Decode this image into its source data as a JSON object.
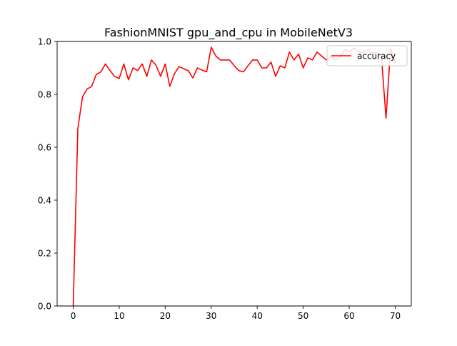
{
  "chart_data": {
    "type": "line",
    "title": "FashionMNIST gpu_and_cpu in MobileNetV3",
    "xlabel": "",
    "ylabel": "",
    "xlim": [
      -3.5,
      73.5
    ],
    "ylim": [
      0,
      1.0
    ],
    "x_ticks": [
      0,
      10,
      20,
      30,
      40,
      50,
      60,
      70
    ],
    "y_ticks": [
      0.0,
      0.2,
      0.4,
      0.6,
      0.8,
      1.0
    ],
    "x_tick_labels": [
      "0",
      "10",
      "20",
      "30",
      "40",
      "50",
      "60",
      "70"
    ],
    "y_tick_labels": [
      "0.0",
      "0.2",
      "0.4",
      "0.6",
      "0.8",
      "1.0"
    ],
    "grid": false,
    "legend_position": "top-right",
    "series": [
      {
        "name": "accuracy",
        "color": "#ff0000",
        "x": [
          0,
          1,
          2,
          3,
          4,
          5,
          6,
          7,
          8,
          9,
          10,
          11,
          12,
          13,
          14,
          15,
          16,
          17,
          18,
          19,
          20,
          21,
          22,
          23,
          24,
          25,
          26,
          27,
          28,
          29,
          30,
          31,
          32,
          33,
          34,
          35,
          36,
          37,
          38,
          39,
          40,
          41,
          42,
          43,
          44,
          45,
          46,
          47,
          48,
          49,
          50,
          51,
          52,
          53,
          54,
          55,
          56,
          57,
          58,
          59,
          60,
          61,
          62,
          63,
          64,
          65,
          66,
          67,
          68,
          69,
          70
        ],
        "values": [
          0.0,
          0.67,
          0.79,
          0.82,
          0.83,
          0.875,
          0.885,
          0.915,
          0.89,
          0.868,
          0.86,
          0.915,
          0.855,
          0.9,
          0.89,
          0.915,
          0.868,
          0.93,
          0.91,
          0.868,
          0.915,
          0.83,
          0.878,
          0.905,
          0.897,
          0.89,
          0.862,
          0.9,
          0.892,
          0.885,
          0.978,
          0.945,
          0.93,
          0.93,
          0.93,
          0.908,
          0.89,
          0.885,
          0.908,
          0.93,
          0.93,
          0.9,
          0.9,
          0.922,
          0.868,
          0.908,
          0.9,
          0.96,
          0.93,
          0.952,
          0.9,
          0.938,
          0.93,
          0.96,
          0.945,
          0.93,
          0.945,
          0.93,
          0.94,
          0.968,
          0.96,
          0.975,
          0.96,
          0.958,
          0.968,
          0.955,
          0.96,
          0.945,
          0.71,
          0.975,
          0.918
        ]
      }
    ]
  }
}
